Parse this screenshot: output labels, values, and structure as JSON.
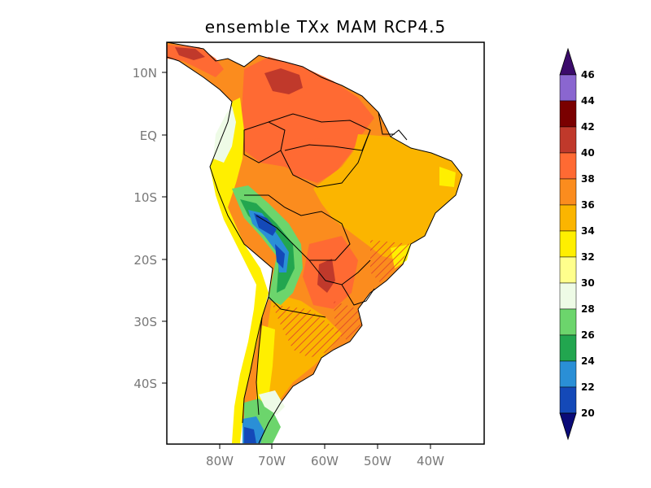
{
  "title": "ensemble TXx MAM RCP4.5",
  "axes": {
    "y_ticks": [
      "10N",
      "EQ",
      "10S",
      "20S",
      "30S",
      "40S"
    ],
    "x_ticks": [
      "80W",
      "70W",
      "60W",
      "50W",
      "40W"
    ]
  },
  "colorbar": {
    "labels": [
      "46",
      "44",
      "42",
      "40",
      "38",
      "36",
      "34",
      "32",
      "30",
      "28",
      "26",
      "24",
      "22",
      "20"
    ],
    "colors": {
      "above_46": "#3b0b6b",
      "44_46": "#8a66d0",
      "42_44": "#7a0000",
      "40_42": "#c0392b",
      "38_40": "#ff6a33",
      "36_38": "#fb8c1e",
      "34_36": "#fbb500",
      "32_34": "#ffef00",
      "30_32": "#ffff8c",
      "28_30": "#eefbe6",
      "26_28": "#6cd56c",
      "24_26": "#22a64f",
      "22_24": "#2a8fd6",
      "20_22": "#1449b8",
      "below_20": "#0a0a78"
    }
  },
  "map": {
    "region": "South America",
    "hatching": "significance stippling (red diagonal lines)"
  }
}
